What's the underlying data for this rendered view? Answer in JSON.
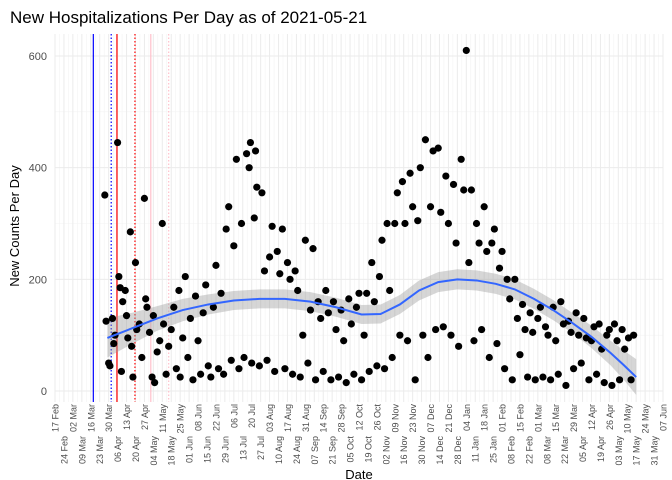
{
  "chart_data": {
    "type": "scatter",
    "title": "New Hospitalizations Per Day as of 2021-05-21",
    "xlabel": "Date",
    "ylabel": "New Counts Per Day",
    "x_origin": "2020-02-17",
    "x_unit": "days since x_origin",
    "xlim": [
      0,
      476
    ],
    "ylim": [
      -20,
      640
    ],
    "y_ticks": [
      0,
      200,
      400,
      600
    ],
    "x_tick_labels": [
      "17 Feb",
      "24 Feb",
      "02 Mar",
      "09 Mar",
      "16 Mar",
      "23 Mar",
      "30 Mar",
      "06 Apr",
      "13 Apr",
      "20 Apr",
      "27 Apr",
      "04 May",
      "11 May",
      "18 May",
      "25 May",
      "01 Jun",
      "08 Jun",
      "15 Jun",
      "22 Jun",
      "29 Jun",
      "06 Jul",
      "13 Jul",
      "20 Jul",
      "27 Jul",
      "03 Aug",
      "10 Aug",
      "17 Aug",
      "24 Aug",
      "31 Aug",
      "07 Sep",
      "14 Sep",
      "21 Sep",
      "28 Sep",
      "05 Oct",
      "12 Oct",
      "19 Oct",
      "26 Oct",
      "02 Nov",
      "09 Nov",
      "16 Nov",
      "23 Nov",
      "30 Nov",
      "07 Dec",
      "14 Dec",
      "21 Dec",
      "28 Dec",
      "04 Jan",
      "11 Jan",
      "18 Jan",
      "25 Jan",
      "01 Feb",
      "08 Feb",
      "15 Feb",
      "22 Feb",
      "01 Mar",
      "08 Mar",
      "15 Mar",
      "22 Mar",
      "29 Mar",
      "05 Apr",
      "12 Apr",
      "19 Apr",
      "26 Apr",
      "03 May",
      "10 May",
      "17 May",
      "24 May",
      "31 May",
      "07 Jun"
    ],
    "grid": true,
    "legend": "none",
    "reference_lines": [
      {
        "day": 30,
        "color": "#0000ff",
        "style": "solid"
      },
      {
        "day": 44,
        "color": "#0000ff",
        "style": "dotted"
      },
      {
        "day": 48.5,
        "color": "#ff0000",
        "style": "solid"
      },
      {
        "day": 62.6,
        "color": "#ff0000",
        "style": "dotted"
      },
      {
        "day": 75,
        "color": "#ffc0cb",
        "style": "solid"
      },
      {
        "day": 89,
        "color": "#ffc0cb",
        "style": "dotted"
      }
    ],
    "smooth": {
      "color": "#3366ff",
      "band_color": "#999999",
      "points": [
        [
          41,
          95
        ],
        [
          60,
          112
        ],
        [
          80,
          130
        ],
        [
          100,
          145
        ],
        [
          120,
          155
        ],
        [
          140,
          162
        ],
        [
          160,
          165
        ],
        [
          180,
          165
        ],
        [
          200,
          160
        ],
        [
          220,
          150
        ],
        [
          240,
          137
        ],
        [
          255,
          138
        ],
        [
          270,
          155
        ],
        [
          285,
          180
        ],
        [
          300,
          195
        ],
        [
          315,
          200
        ],
        [
          330,
          198
        ],
        [
          345,
          192
        ],
        [
          360,
          182
        ],
        [
          375,
          165
        ],
        [
          390,
          145
        ],
        [
          405,
          122
        ],
        [
          420,
          97
        ],
        [
          435,
          68
        ],
        [
          445,
          47
        ],
        [
          455,
          25
        ]
      ],
      "se": [
        35,
        28,
        22,
        20,
        18,
        17,
        17,
        17,
        17,
        17,
        17,
        17,
        17,
        18,
        18,
        18,
        18,
        18,
        18,
        18,
        18,
        18,
        20,
        22,
        26,
        32
      ]
    },
    "points": [
      [
        39,
        351
      ],
      [
        40,
        125
      ],
      [
        42,
        50
      ],
      [
        43,
        45
      ],
      [
        45,
        130
      ],
      [
        46,
        85
      ],
      [
        47,
        100
      ],
      [
        49,
        445
      ],
      [
        50,
        205
      ],
      [
        51,
        185
      ],
      [
        52,
        35
      ],
      [
        53,
        160
      ],
      [
        55,
        180
      ],
      [
        56,
        135
      ],
      [
        57,
        95
      ],
      [
        59,
        285
      ],
      [
        60,
        80
      ],
      [
        61,
        25
      ],
      [
        63,
        230
      ],
      [
        64,
        110
      ],
      [
        66,
        120
      ],
      [
        68,
        60
      ],
      [
        70,
        345
      ],
      [
        71,
        165
      ],
      [
        72,
        150
      ],
      [
        74,
        105
      ],
      [
        76,
        25
      ],
      [
        77,
        135
      ],
      [
        78,
        15
      ],
      [
        80,
        70
      ],
      [
        82,
        90
      ],
      [
        84,
        300
      ],
      [
        85,
        120
      ],
      [
        87,
        30
      ],
      [
        89,
        80
      ],
      [
        91,
        110
      ],
      [
        93,
        150
      ],
      [
        95,
        40
      ],
      [
        97,
        180
      ],
      [
        98,
        25
      ],
      [
        100,
        95
      ],
      [
        102,
        205
      ],
      [
        104,
        60
      ],
      [
        106,
        130
      ],
      [
        108,
        20
      ],
      [
        110,
        170
      ],
      [
        112,
        90
      ],
      [
        114,
        30
      ],
      [
        116,
        140
      ],
      [
        118,
        190
      ],
      [
        120,
        45
      ],
      [
        122,
        25
      ],
      [
        124,
        150
      ],
      [
        126,
        225
      ],
      [
        128,
        40
      ],
      [
        130,
        175
      ],
      [
        132,
        30
      ],
      [
        134,
        290
      ],
      [
        136,
        330
      ],
      [
        138,
        55
      ],
      [
        140,
        260
      ],
      [
        142,
        415
      ],
      [
        144,
        40
      ],
      [
        146,
        300
      ],
      [
        148,
        60
      ],
      [
        150,
        425
      ],
      [
        152,
        400
      ],
      [
        153,
        445
      ],
      [
        154,
        50
      ],
      [
        156,
        310
      ],
      [
        157,
        430
      ],
      [
        158,
        365
      ],
      [
        160,
        45
      ],
      [
        162,
        355
      ],
      [
        164,
        215
      ],
      [
        166,
        55
      ],
      [
        168,
        240
      ],
      [
        170,
        295
      ],
      [
        172,
        35
      ],
      [
        174,
        250
      ],
      [
        176,
        210
      ],
      [
        178,
        290
      ],
      [
        180,
        40
      ],
      [
        182,
        230
      ],
      [
        184,
        200
      ],
      [
        186,
        30
      ],
      [
        188,
        215
      ],
      [
        190,
        180
      ],
      [
        192,
        25
      ],
      [
        194,
        100
      ],
      [
        196,
        270
      ],
      [
        198,
        50
      ],
      [
        200,
        145
      ],
      [
        202,
        255
      ],
      [
        204,
        20
      ],
      [
        206,
        160
      ],
      [
        208,
        130
      ],
      [
        210,
        35
      ],
      [
        212,
        180
      ],
      [
        214,
        140
      ],
      [
        216,
        20
      ],
      [
        218,
        160
      ],
      [
        220,
        110
      ],
      [
        222,
        25
      ],
      [
        224,
        145
      ],
      [
        226,
        90
      ],
      [
        228,
        15
      ],
      [
        230,
        165
      ],
      [
        232,
        120
      ],
      [
        234,
        30
      ],
      [
        236,
        150
      ],
      [
        238,
        175
      ],
      [
        240,
        20
      ],
      [
        242,
        100
      ],
      [
        244,
        175
      ],
      [
        246,
        35
      ],
      [
        248,
        230
      ],
      [
        250,
        160
      ],
      [
        252,
        45
      ],
      [
        254,
        205
      ],
      [
        256,
        270
      ],
      [
        258,
        40
      ],
      [
        260,
        300
      ],
      [
        262,
        180
      ],
      [
        264,
        60
      ],
      [
        266,
        300
      ],
      [
        268,
        355
      ],
      [
        270,
        100
      ],
      [
        272,
        375
      ],
      [
        274,
        300
      ],
      [
        276,
        90
      ],
      [
        278,
        390
      ],
      [
        280,
        330
      ],
      [
        282,
        20
      ],
      [
        284,
        305
      ],
      [
        286,
        400
      ],
      [
        288,
        100
      ],
      [
        290,
        450
      ],
      [
        292,
        60
      ],
      [
        294,
        330
      ],
      [
        296,
        430
      ],
      [
        298,
        110
      ],
      [
        300,
        435
      ],
      [
        302,
        320
      ],
      [
        304,
        115
      ],
      [
        306,
        385
      ],
      [
        308,
        300
      ],
      [
        310,
        100
      ],
      [
        312,
        370
      ],
      [
        314,
        265
      ],
      [
        316,
        80
      ],
      [
        318,
        415
      ],
      [
        320,
        360
      ],
      [
        322,
        610
      ],
      [
        324,
        230
      ],
      [
        326,
        360
      ],
      [
        328,
        90
      ],
      [
        330,
        300
      ],
      [
        332,
        265
      ],
      [
        334,
        110
      ],
      [
        336,
        330
      ],
      [
        338,
        250
      ],
      [
        340,
        60
      ],
      [
        342,
        265
      ],
      [
        344,
        290
      ],
      [
        346,
        85
      ],
      [
        348,
        220
      ],
      [
        350,
        250
      ],
      [
        352,
        40
      ],
      [
        354,
        200
      ],
      [
        356,
        165
      ],
      [
        358,
        20
      ],
      [
        360,
        200
      ],
      [
        362,
        130
      ],
      [
        364,
        65
      ],
      [
        366,
        155
      ],
      [
        368,
        110
      ],
      [
        370,
        25
      ],
      [
        372,
        140
      ],
      [
        374,
        105
      ],
      [
        376,
        20
      ],
      [
        378,
        130
      ],
      [
        380,
        150
      ],
      [
        382,
        25
      ],
      [
        384,
        115
      ],
      [
        386,
        100
      ],
      [
        388,
        20
      ],
      [
        390,
        150
      ],
      [
        392,
        90
      ],
      [
        394,
        30
      ],
      [
        396,
        160
      ],
      [
        398,
        120
      ],
      [
        400,
        10
      ],
      [
        402,
        125
      ],
      [
        404,
        105
      ],
      [
        406,
        40
      ],
      [
        408,
        140
      ],
      [
        410,
        100
      ],
      [
        412,
        50
      ],
      [
        414,
        130
      ],
      [
        416,
        95
      ],
      [
        418,
        20
      ],
      [
        420,
        90
      ],
      [
        422,
        115
      ],
      [
        424,
        30
      ],
      [
        426,
        120
      ],
      [
        428,
        75
      ],
      [
        430,
        15
      ],
      [
        432,
        100
      ],
      [
        434,
        110
      ],
      [
        436,
        10
      ],
      [
        438,
        120
      ],
      [
        440,
        90
      ],
      [
        442,
        20
      ],
      [
        444,
        110
      ],
      [
        446,
        75
      ],
      [
        449,
        95
      ],
      [
        451,
        20
      ],
      [
        453,
        100
      ]
    ]
  }
}
